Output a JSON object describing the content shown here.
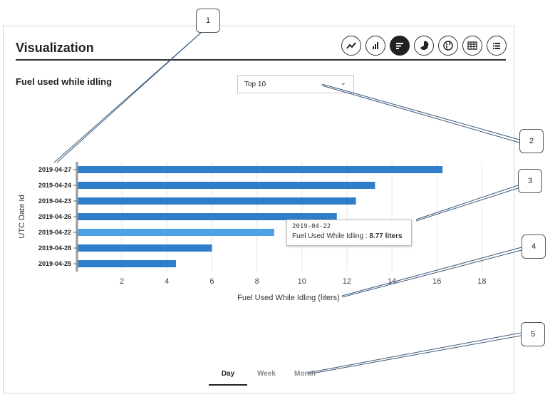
{
  "panel": {
    "title": "Visualization",
    "subtitle": "Fuel used while idling"
  },
  "toolbar": [
    {
      "icon": "line-chart-icon"
    },
    {
      "icon": "bar-chart-icon"
    },
    {
      "icon": "horizontal-bar-chart-icon",
      "active": true
    },
    {
      "icon": "pie-chart-icon"
    },
    {
      "icon": "globe-map-icon"
    },
    {
      "icon": "table-icon"
    },
    {
      "icon": "list-icon"
    }
  ],
  "dropdown": {
    "selected": "Top 10"
  },
  "tooltip": {
    "date": "2019-04-22",
    "label": "Fuel Used While Idling :",
    "value": "8.77 liters"
  },
  "tabs": [
    {
      "label": "Day",
      "active": true
    },
    {
      "label": "Week",
      "active": false
    },
    {
      "label": "Month",
      "active": false
    }
  ],
  "callouts": [
    "1",
    "2",
    "3",
    "4",
    "5"
  ],
  "colors": {
    "bar": "#2f7ec9",
    "bar_highlight": "#4ea1e6",
    "axis": "#999999"
  },
  "chart_data": {
    "type": "bar",
    "orientation": "horizontal",
    "categories": [
      "2019-04-27",
      "2019-04-24",
      "2019-04-23",
      "2019-04-26",
      "2019-04-22",
      "2019-04-28",
      "2019-04-25"
    ],
    "values": [
      16.25,
      13.25,
      12.4,
      11.55,
      8.77,
      6.0,
      4.4
    ],
    "highlighted": "2019-04-22",
    "xlabel": "Fuel Used While Idling (liters)",
    "ylabel": "UTC Date Id",
    "xticks": [
      2,
      4,
      6,
      8,
      10,
      12,
      14,
      16,
      18
    ],
    "xlim": [
      0,
      19
    ],
    "grid": true
  }
}
